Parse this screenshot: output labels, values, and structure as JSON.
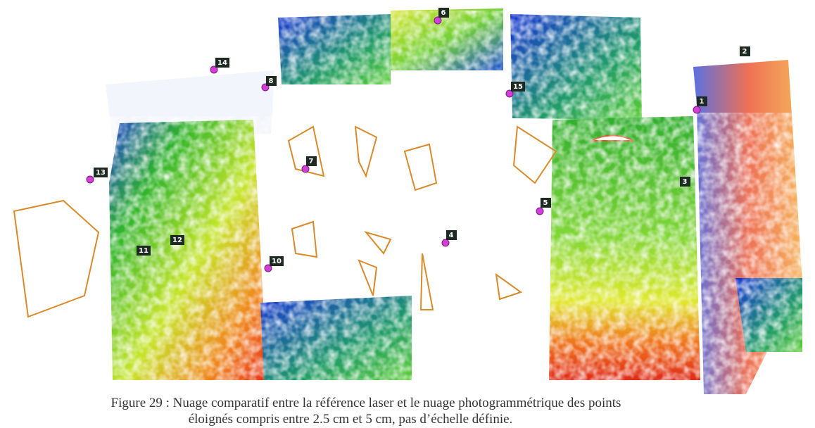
{
  "figure": {
    "markers": [
      "1",
      "2",
      "3",
      "4",
      "5",
      "6",
      "7",
      "8",
      "10",
      "11",
      "12",
      "13",
      "14",
      "15"
    ],
    "caption": [
      "Figure 29 : Nuage comparatif entre la référence laser et le nuage photogrammétrique des points",
      "éloignés compris entre 2.5 cm et 5 cm, pas d’échelle définie."
    ]
  }
}
